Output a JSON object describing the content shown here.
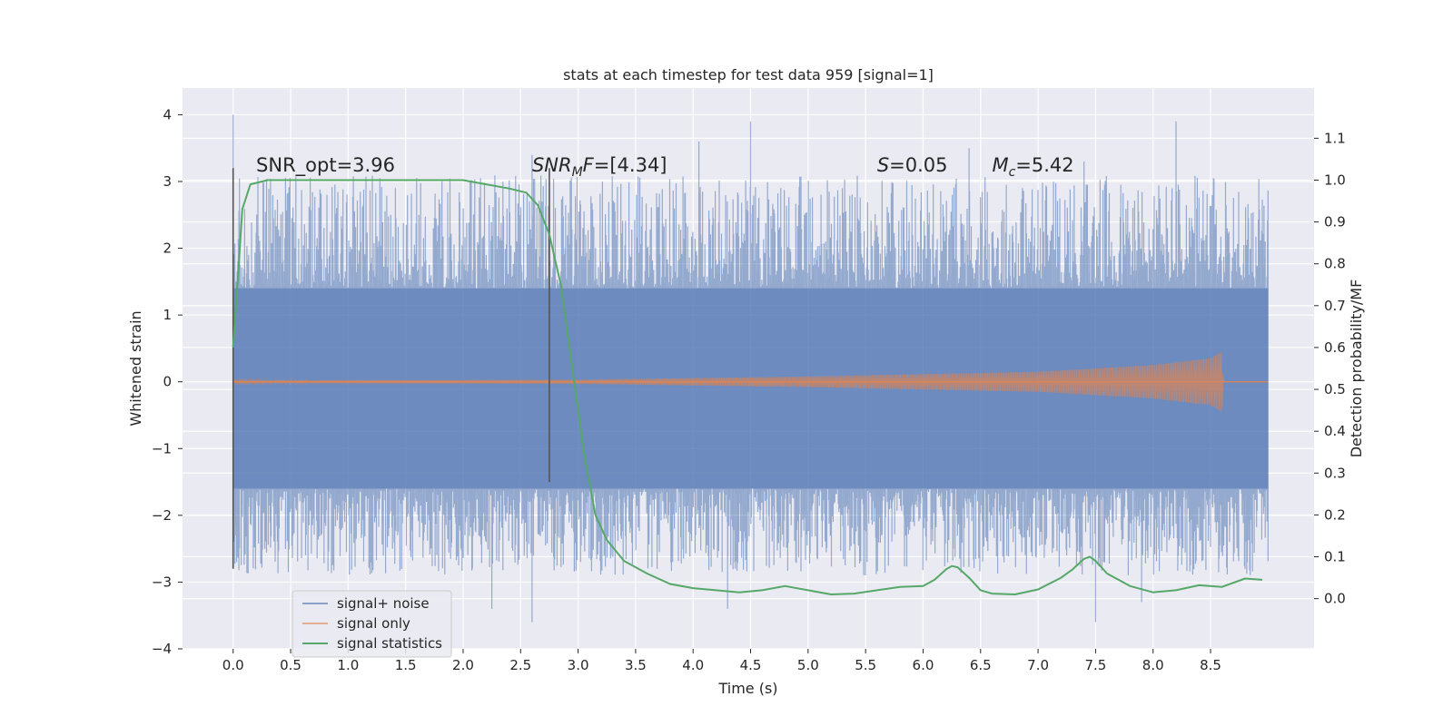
{
  "chart_data": {
    "type": "line",
    "title": "stats at each timestep for test data 959 [signal=1]",
    "xlabel": "Time (s)",
    "ylabel": "Whitened strain",
    "ylabel_right": "Detection probability/MF",
    "xlim": [
      -0.44,
      9.4
    ],
    "ylim": [
      -4.0,
      4.4
    ],
    "ylim_right": [
      -0.12,
      1.22
    ],
    "x_ticks": [
      0.0,
      0.5,
      1.0,
      1.5,
      2.0,
      2.5,
      3.0,
      3.5,
      4.0,
      4.5,
      5.0,
      5.5,
      6.0,
      6.5,
      7.0,
      7.5,
      8.0,
      8.5
    ],
    "x_tick_labels": [
      "0.0",
      "0.5",
      "1.0",
      "1.5",
      "2.0",
      "2.5",
      "3.0",
      "3.5",
      "4.0",
      "4.5",
      "5.0",
      "5.5",
      "6.0",
      "6.5",
      "7.0",
      "7.5",
      "8.0",
      "8.5"
    ],
    "y_ticks": [
      -4,
      -3,
      -2,
      -1,
      0,
      1,
      2,
      3,
      4
    ],
    "y_tick_labels": [
      "−4",
      "−3",
      "−2",
      "−1",
      "0",
      "1",
      "2",
      "3",
      "4"
    ],
    "y_ticks_right": [
      0.0,
      0.1,
      0.2,
      0.3,
      0.4,
      0.5,
      0.6,
      0.7,
      0.8,
      0.9,
      1.0,
      1.1
    ],
    "y_tick_labels_right": [
      "0.0",
      "0.1",
      "0.2",
      "0.3",
      "0.4",
      "0.5",
      "0.6",
      "0.7",
      "0.8",
      "0.9",
      "1.0",
      "1.1"
    ],
    "grid": true,
    "legend_position": "lower-left",
    "series": [
      {
        "name": "signal+ noise",
        "color": "#4c72b0",
        "axis": "left",
        "x_range": [
          0.0,
          9.0
        ],
        "band": [
          -1.6,
          1.4
        ],
        "peaks_max": [
          4.0,
          3.9,
          3.9,
          3.6,
          3.5,
          3.4,
          3.3
        ],
        "peaks_min": [
          -3.6,
          -3.6,
          -3.4,
          -3.4,
          -3.3
        ],
        "note": "dense noise trace sampled across the full time range"
      },
      {
        "name": "signal only",
        "color": "#dd8452",
        "axis": "left",
        "x_range": [
          0.0,
          9.0
        ],
        "envelope": [
          {
            "x": 0.0,
            "amp": 0.02
          },
          {
            "x": 3.0,
            "amp": 0.03
          },
          {
            "x": 5.0,
            "amp": 0.08
          },
          {
            "x": 7.0,
            "amp": 0.15
          },
          {
            "x": 8.0,
            "amp": 0.25
          },
          {
            "x": 8.5,
            "amp": 0.35
          },
          {
            "x": 8.6,
            "amp": 0.45
          },
          {
            "x": 8.61,
            "amp": 0.0
          }
        ]
      },
      {
        "name": "signal statistics",
        "color": "#55a868",
        "axis": "right",
        "x": [
          0.0,
          0.05,
          0.08,
          0.15,
          0.3,
          0.6,
          1.0,
          1.5,
          2.0,
          2.2,
          2.4,
          2.55,
          2.65,
          2.75,
          2.85,
          2.95,
          3.05,
          3.15,
          3.25,
          3.4,
          3.6,
          3.8,
          4.0,
          4.2,
          4.4,
          4.6,
          4.8,
          5.0,
          5.2,
          5.4,
          5.6,
          5.8,
          6.0,
          6.1,
          6.2,
          6.25,
          6.3,
          6.4,
          6.5,
          6.6,
          6.8,
          7.0,
          7.2,
          7.3,
          7.4,
          7.45,
          7.5,
          7.6,
          7.8,
          8.0,
          8.2,
          8.4,
          8.6,
          8.8,
          8.95
        ],
        "y": [
          0.6,
          0.8,
          0.93,
          0.99,
          1.0,
          1.0,
          1.0,
          1.0,
          1.0,
          0.99,
          0.98,
          0.97,
          0.94,
          0.87,
          0.75,
          0.55,
          0.35,
          0.2,
          0.14,
          0.09,
          0.06,
          0.035,
          0.025,
          0.02,
          0.015,
          0.02,
          0.03,
          0.02,
          0.01,
          0.012,
          0.02,
          0.028,
          0.03,
          0.045,
          0.07,
          0.078,
          0.075,
          0.05,
          0.02,
          0.012,
          0.01,
          0.022,
          0.05,
          0.07,
          0.095,
          0.1,
          0.09,
          0.06,
          0.03,
          0.015,
          0.02,
          0.032,
          0.028,
          0.048,
          0.045
        ]
      }
    ],
    "vertical_lines": [
      {
        "x": 0.0,
        "y_range": [
          -2.8,
          3.2
        ]
      },
      {
        "x": 2.75,
        "y_range": [
          -1.5,
          3.2
        ]
      }
    ],
    "annotations": [
      {
        "text": "SNR_opt=3.96",
        "x": 0.2,
        "y": 3.15,
        "style": "normal"
      },
      {
        "text_main": "SNR",
        "text_sub": "M",
        "text_rest": "F=[4.34]",
        "x": 2.6,
        "y": 3.15,
        "style": "italic"
      },
      {
        "text_main": "S",
        "text_rest": "=0.05",
        "x": 5.6,
        "y": 3.15,
        "style": "italic"
      },
      {
        "text_main": "M",
        "text_sub": "c",
        "text_rest": "=5.42",
        "x": 6.6,
        "y": 3.15,
        "style": "italic"
      }
    ]
  }
}
